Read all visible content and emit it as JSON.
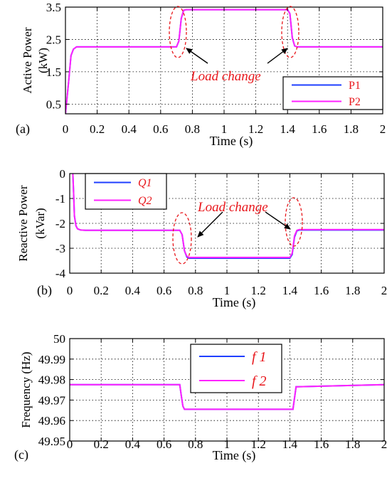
{
  "chart_data": [
    {
      "type": "line",
      "panel_label": "(a)",
      "xlabel": "Time (s)",
      "ylabel": "Active Power (kW)",
      "ylabel_lines": [
        "Active Power",
        "(kW)"
      ],
      "xlim": [
        0,
        2
      ],
      "ylim": [
        0.2,
        3.5
      ],
      "xticks": [
        "0",
        "0.2",
        "0.4",
        "0.6",
        "0.8",
        "1",
        "1.2",
        "1.4",
        "1.6",
        "1.8",
        "2"
      ],
      "yticks": [
        "0.5",
        "1.5",
        "2.5",
        "3.5"
      ],
      "ytick_values": [
        0.5,
        1.5,
        2.5,
        3.5
      ],
      "grid": true,
      "legend_position": "bottom-right",
      "annotation": "Load change",
      "series": [
        {
          "name": "P1",
          "color": "#1f3fff",
          "x": [
            0,
            0.02,
            0.035,
            0.05,
            0.07,
            0.1,
            0.7,
            0.715,
            0.73,
            0.745,
            0.76,
            1.4,
            1.415,
            1.43,
            1.445,
            1.46,
            2.0
          ],
          "y": [
            0.2,
            1.2,
            2.0,
            2.2,
            2.27,
            2.27,
            2.27,
            2.45,
            3.15,
            3.4,
            3.42,
            3.42,
            3.3,
            2.55,
            2.3,
            2.27,
            2.27
          ]
        },
        {
          "name": "P2",
          "color": "#ff22ff",
          "x": [
            0,
            0.02,
            0.035,
            0.05,
            0.07,
            0.1,
            0.7,
            0.715,
            0.73,
            0.745,
            0.76,
            1.4,
            1.415,
            1.43,
            1.445,
            1.46,
            2.0
          ],
          "y": [
            0.2,
            1.2,
            2.0,
            2.2,
            2.27,
            2.27,
            2.27,
            2.45,
            3.15,
            3.4,
            3.42,
            3.42,
            3.3,
            2.55,
            2.3,
            2.27,
            2.27
          ]
        }
      ]
    },
    {
      "type": "line",
      "panel_label": "(b)",
      "xlabel": "Time (s)",
      "ylabel": "Reactive Power (kVar)",
      "ylabel_lines": [
        "Reactive Power",
        "(kVar)"
      ],
      "xlim": [
        0,
        2
      ],
      "ylim": [
        -4,
        0
      ],
      "xticks": [
        "0",
        "0.2",
        "0.4",
        "0.6",
        "0.8",
        "1",
        "1.2",
        "1.4",
        "1.6",
        "1.8",
        "2"
      ],
      "yticks": [
        "0",
        "-1",
        "-2",
        "-3",
        "-4"
      ],
      "ytick_values": [
        0,
        -1,
        -2,
        -3,
        -4
      ],
      "grid": true,
      "legend_position": "top-left",
      "annotation": "Load change",
      "series": [
        {
          "name": "Q1",
          "color": "#1f3fff",
          "x": [
            0.02,
            0.025,
            0.03,
            0.04,
            0.05,
            0.07,
            0.1,
            0.7,
            0.715,
            0.73,
            0.745,
            0.76,
            1.4,
            1.415,
            1.43,
            1.445,
            1.46,
            2.0
          ],
          "y": [
            0,
            -0.8,
            -1.7,
            -2.1,
            -2.22,
            -2.27,
            -2.28,
            -2.28,
            -2.45,
            -3.1,
            -3.35,
            -3.4,
            -3.4,
            -3.25,
            -2.55,
            -2.3,
            -2.27,
            -2.27
          ]
        },
        {
          "name": "Q2",
          "color": "#ff22ff",
          "x": [
            0.02,
            0.025,
            0.03,
            0.04,
            0.05,
            0.07,
            0.1,
            0.7,
            0.715,
            0.73,
            0.745,
            0.76,
            1.4,
            1.415,
            1.43,
            1.445,
            1.46,
            2.0
          ],
          "y": [
            0,
            -0.8,
            -1.7,
            -2.1,
            -2.22,
            -2.27,
            -2.28,
            -2.28,
            -2.45,
            -3.1,
            -3.32,
            -3.37,
            -3.37,
            -3.2,
            -2.5,
            -2.28,
            -2.25,
            -2.25
          ]
        }
      ]
    },
    {
      "type": "line",
      "panel_label": "(c)",
      "xlabel": "Time (s)",
      "ylabel": "Frequency (Hz)",
      "ylabel_lines": [
        "Frequency (Hz)"
      ],
      "xlim": [
        0,
        2
      ],
      "ylim": [
        49.95,
        50
      ],
      "xticks": [
        "0",
        "0.2",
        "0.4",
        "0.6",
        "0.8",
        "1",
        "1.2",
        "1.4",
        "1.6",
        "1.8",
        "2"
      ],
      "yticks": [
        "50",
        "49.99",
        "49.98",
        "49.97",
        "49.96",
        "49.95"
      ],
      "ytick_values": [
        50,
        49.99,
        49.98,
        49.97,
        49.96,
        49.95
      ],
      "grid": true,
      "legend_position": "top-center",
      "series": [
        {
          "name": "f 1",
          "color": "#1f3fff",
          "x": [
            -0.02,
            -0.015,
            -0.01,
            0.0,
            0.7,
            0.71,
            0.72,
            0.73,
            1.42,
            1.43,
            1.44,
            2.0
          ],
          "y": [
            50,
            49.99,
            49.98,
            49.9775,
            49.9775,
            49.972,
            49.967,
            49.9655,
            49.9655,
            49.971,
            49.9765,
            49.9775
          ]
        },
        {
          "name": "f 2",
          "color": "#ff22ff",
          "x": [
            -0.02,
            -0.015,
            -0.01,
            0.0,
            0.7,
            0.71,
            0.72,
            0.73,
            1.42,
            1.43,
            1.44,
            2.0
          ],
          "y": [
            50,
            49.99,
            49.98,
            49.9775,
            49.9775,
            49.972,
            49.967,
            49.9655,
            49.9655,
            49.971,
            49.9765,
            49.9775
          ]
        }
      ]
    }
  ]
}
